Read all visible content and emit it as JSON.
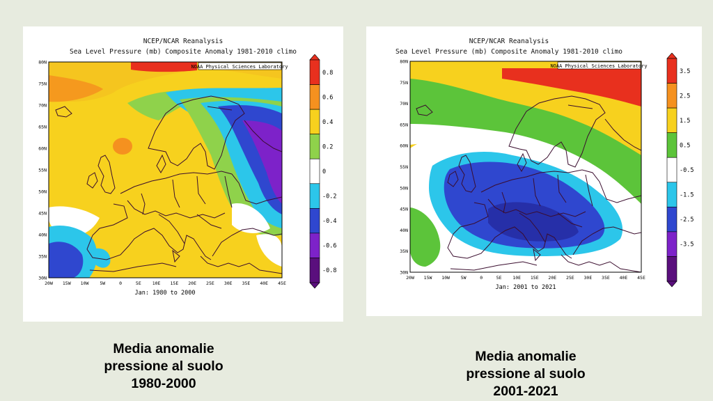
{
  "maps": [
    {
      "title_line1": "NCEP/NCAR Reanalysis",
      "title_line2": "Sea Level Pressure (mb) Composite Anomaly 1981-2010 climo",
      "credit": "NOAA Physical Sciences Laboratory",
      "period": "Jan: 1980 to 2000",
      "lat_labels": [
        "80N",
        "75N",
        "70N",
        "65N",
        "60N",
        "55N",
        "50N",
        "45N",
        "40N",
        "35N",
        "30N"
      ],
      "lon_labels": [
        "20W",
        "15W",
        "10W",
        "5W",
        "0",
        "5E",
        "10E",
        "15E",
        "20E",
        "25E",
        "30E",
        "35E",
        "40E",
        "45E"
      ],
      "colorbar_labels": [
        "0.8",
        "0.6",
        "0.4",
        "0.2",
        "0",
        "-0.2",
        "-0.4",
        "-0.6",
        "-0.8"
      ],
      "colorbar_colors": [
        "#e8301e",
        "#f5911f",
        "#f7d11e",
        "#8fd24b",
        "#ffffff",
        "#2cc6ea",
        "#2f47cf",
        "#7d22c9",
        "#5a0f7d"
      ]
    },
    {
      "title_line1": "NCEP/NCAR Reanalysis",
      "title_line2": "Sea Level Pressure (mb) Composite Anomaly 1981-2010 climo",
      "credit": "NOAA Physical Sciences Laboratory",
      "period": "Jan: 2001 to 2021",
      "lat_labels": [
        "80N",
        "75N",
        "70N",
        "65N",
        "60N",
        "55N",
        "50N",
        "45N",
        "40N",
        "35N",
        "30N"
      ],
      "lon_labels": [
        "20W",
        "15W",
        "10W",
        "5W",
        "0",
        "5E",
        "10E",
        "15E",
        "20E",
        "25E",
        "30E",
        "35E",
        "40E",
        "45E"
      ],
      "colorbar_labels": [
        "3.5",
        "2.5",
        "1.5",
        "0.5",
        "-0.5",
        "-1.5",
        "-2.5",
        "-3.5"
      ],
      "colorbar_colors": [
        "#e8301e",
        "#f5911f",
        "#f7d11e",
        "#5cc43a",
        "#ffffff",
        "#2cc6ea",
        "#2f47cf",
        "#7d22c9",
        "#5a0f7d"
      ]
    }
  ],
  "captions": [
    {
      "line1": "Media anomalie",
      "line2": "pressione al suolo",
      "line3": "1980-2000"
    },
    {
      "line1": "Media anomalie",
      "line2": "pressione al suolo",
      "line3": "2001-2021"
    }
  ]
}
